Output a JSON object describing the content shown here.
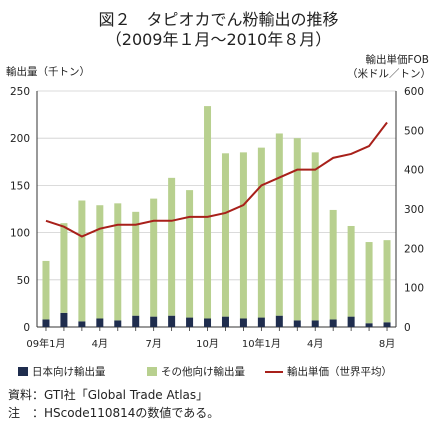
{
  "title_line1": "図２　タピオカでん粉輸出の推移",
  "title_line2": "（2009年１月～2010年８月）",
  "source_note": "資料：GTI社「Global Trade Atlas」",
  "hs_note": "注　：HScode110814の数値である。",
  "chart_data": {
    "type": "bar",
    "ylabel_left": "輸出量（千トン）",
    "ylabel_right_line1": "輸出単価FOB",
    "ylabel_right_line2": "（米ドル／トン）",
    "x_tick_labels": [
      "09年1月",
      "4月",
      "7月",
      "10月",
      "10年1月",
      "4月",
      "8月"
    ],
    "x_tick_indices": [
      0,
      3,
      6,
      9,
      12,
      15,
      19
    ],
    "ylim_left": [
      0,
      250
    ],
    "yticks_left": [
      0,
      50,
      100,
      150,
      200,
      250
    ],
    "ylim_right": [
      0,
      600
    ],
    "yticks_right": [
      0,
      100,
      200,
      300,
      400,
      500,
      600
    ],
    "months": 20,
    "series": [
      {
        "name": "日本向け輸出量",
        "type": "stacked-bar",
        "color": "#1f2d4e",
        "values": [
          8,
          15,
          6,
          9,
          7,
          12,
          11,
          12,
          10,
          9,
          11,
          9,
          10,
          12,
          7,
          7,
          8,
          11,
          4,
          5
        ]
      },
      {
        "name": "その他向け輸出量",
        "type": "stacked-bar",
        "color": "#b8d08f",
        "values": [
          62,
          95,
          128,
          120,
          124,
          110,
          125,
          146,
          135,
          225,
          173,
          176,
          180,
          193,
          193,
          178,
          116,
          96,
          86,
          87
        ]
      },
      {
        "name": "輸出単価（世界平均）",
        "type": "line",
        "axis": "right",
        "color": "#a8201a",
        "values": [
          270,
          255,
          230,
          250,
          260,
          260,
          270,
          270,
          280,
          280,
          290,
          310,
          360,
          380,
          400,
          400,
          430,
          440,
          460,
          520
        ]
      }
    ],
    "grid": true,
    "legend_position": "bottom"
  }
}
